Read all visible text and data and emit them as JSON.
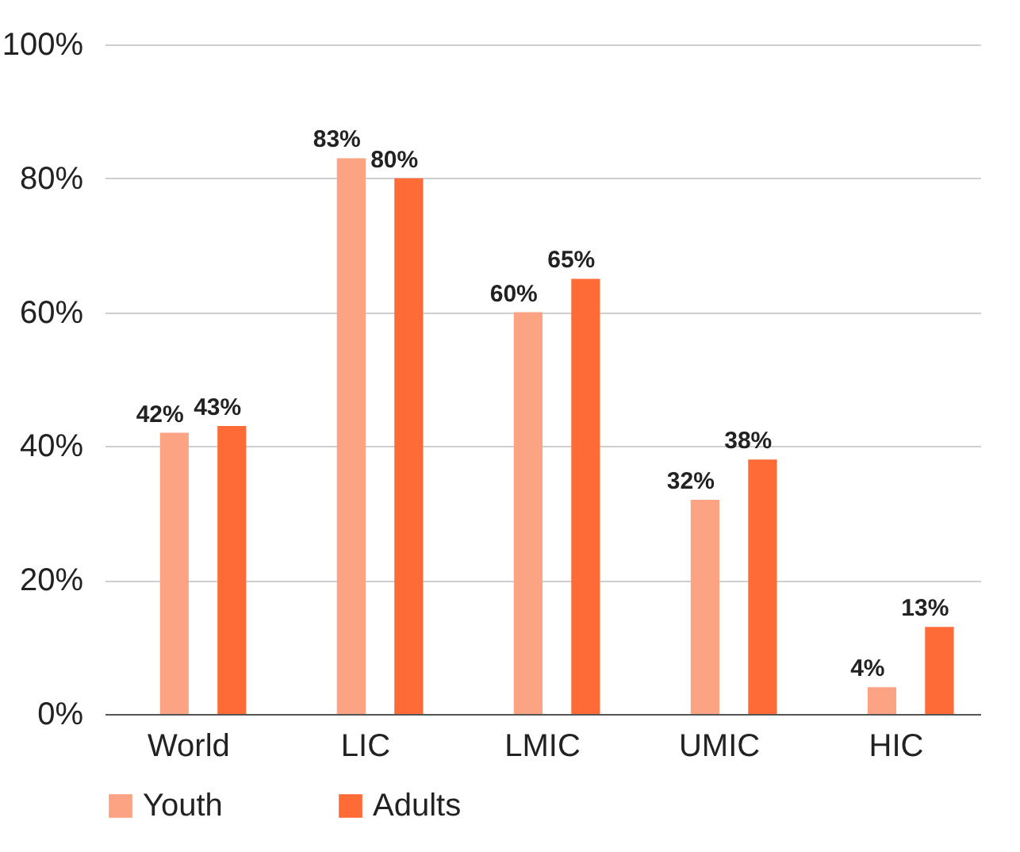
{
  "chart_data": {
    "type": "bar",
    "categories": [
      "World",
      "LIC",
      "LMIC",
      "UMIC",
      "HIC"
    ],
    "series": [
      {
        "name": "Youth",
        "color": "#fca383",
        "values": [
          42,
          83,
          60,
          32,
          4
        ],
        "value_labels": [
          "42%",
          "83%",
          "60%",
          "32%",
          "4%"
        ]
      },
      {
        "name": "Adults",
        "color": "#ff6b37",
        "values": [
          43,
          80,
          65,
          38,
          13
        ],
        "value_labels": [
          "43%",
          "80%",
          "65%",
          "38%",
          "13%"
        ]
      }
    ],
    "ylim": [
      0,
      100
    ],
    "yticks": [
      {
        "value": 0,
        "label": "0%"
      },
      {
        "value": 20,
        "label": "20%"
      },
      {
        "value": 40,
        "label": "40%"
      },
      {
        "value": 60,
        "label": "60%"
      },
      {
        "value": 80,
        "label": "80%"
      },
      {
        "value": 100,
        "label": "100%"
      }
    ],
    "grid": "y",
    "legend": "bottom"
  }
}
